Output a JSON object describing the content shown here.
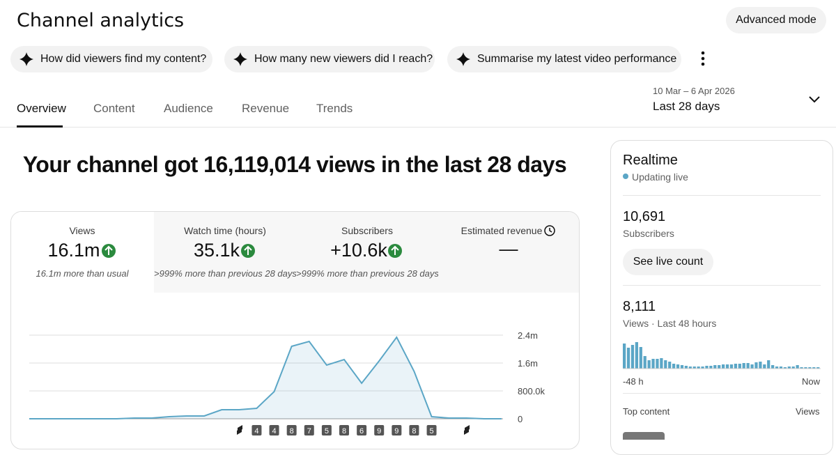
{
  "header": {
    "title": "Channel analytics",
    "mode_button": "Advanced mode"
  },
  "suggestions": [
    "How did viewers find my content?",
    "How many new viewers did I reach?",
    "Summarise my latest video performance"
  ],
  "tabs": [
    "Overview",
    "Content",
    "Audience",
    "Revenue",
    "Trends"
  ],
  "date_range": {
    "dates": "10 Mar – 6 Apr 2026",
    "period": "Last 28 days"
  },
  "headline": "Your channel got 16,119,014 views in the last 28 days",
  "metrics": [
    {
      "label": "Views",
      "value": "16.1m",
      "note": "16.1m more than usual"
    },
    {
      "label": "Watch time (hours)",
      "value": "35.1k",
      "note": ">999% more than previous 28 days"
    },
    {
      "label": "Subscribers",
      "value": "+10.6k",
      "note": ">999% more than previous 28 days"
    },
    {
      "label": "Estimated revenue",
      "value": "—"
    }
  ],
  "chart_data": {
    "type": "line",
    "color": "#5ba6c6",
    "grid": true,
    "values": [
      0,
      0,
      0,
      0,
      0,
      0,
      20000,
      20000,
      60000,
      80000,
      80000,
      260000,
      260000,
      300000,
      780000,
      2080000,
      2220000,
      1540000,
      1700000,
      1020000,
      1660000,
      2340000,
      1360000,
      60000,
      20000,
      20000,
      0,
      0
    ],
    "markers": [
      null,
      null,
      null,
      null,
      null,
      null,
      null,
      null,
      null,
      null,
      null,
      null,
      null,
      "4",
      "4",
      "8",
      "7",
      "5",
      "8",
      "6",
      "9",
      "9",
      "8",
      "5",
      null,
      null,
      null,
      null
    ],
    "ylim": [
      0,
      2400000
    ],
    "yticks": [
      {
        "value": 0,
        "label": "0"
      },
      {
        "value": 800000,
        "label": "800.0k"
      },
      {
        "value": 1600000,
        "label": "1.6m"
      },
      {
        "value": 2400000,
        "label": "2.4m"
      }
    ]
  },
  "realtime": {
    "title": "Realtime",
    "status": "Updating live",
    "subscribers": {
      "value": "10,691",
      "label": "Subscribers"
    },
    "button": "See live count",
    "views": {
      "value": "8,111",
      "label": "Views · Last 48 hours"
    },
    "chart": {
      "type": "bar",
      "color": "#5ba6c6",
      "values": [
        648,
        540,
        612,
        684,
        558,
        324,
        216,
        252,
        252,
        270,
        216,
        180,
        126,
        108,
        90,
        72,
        54,
        54,
        54,
        54,
        72,
        72,
        90,
        90,
        108,
        108,
        108,
        126,
        126,
        144,
        144,
        108,
        162,
        180,
        108,
        216,
        90,
        54,
        54,
        36,
        54,
        54,
        90,
        36,
        36,
        36,
        36,
        36
      ],
      "axis_start": "-48 h",
      "axis_end": "Now"
    },
    "top_content": {
      "label": "Top content",
      "metric": "Views"
    }
  }
}
